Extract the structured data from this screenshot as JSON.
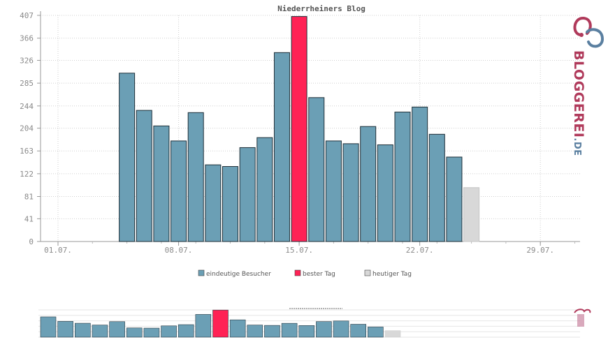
{
  "chart_data": {
    "type": "bar",
    "title": "Niederrheiners Blog",
    "y_ticks": [
      "0",
      "41",
      "81",
      "122",
      "163",
      "204",
      "244",
      "285",
      "326",
      "366",
      "407"
    ],
    "ylim": [
      0,
      407
    ],
    "x_tick_labels": [
      {
        "day": 1,
        "label": "01.07."
      },
      {
        "day": 8,
        "label": "08.07."
      },
      {
        "day": 15,
        "label": "15.07."
      },
      {
        "day": 22,
        "label": "22.07."
      },
      {
        "day": 29,
        "label": "29.07."
      }
    ],
    "grid": true,
    "legend_position": "bottom-center",
    "series": [
      {
        "name": "eindeutige Besucher",
        "color": "#6b9fb5"
      },
      {
        "name": "bester Tag",
        "color": "#ff2255"
      },
      {
        "name": "heutiger Tag",
        "color": "#d8d8d8"
      }
    ],
    "bars": [
      {
        "day": 5,
        "value": 303,
        "kind": 0
      },
      {
        "day": 6,
        "value": 236,
        "kind": 0
      },
      {
        "day": 7,
        "value": 208,
        "kind": 0
      },
      {
        "day": 8,
        "value": 181,
        "kind": 0
      },
      {
        "day": 9,
        "value": 232,
        "kind": 0
      },
      {
        "day": 10,
        "value": 138,
        "kind": 0
      },
      {
        "day": 11,
        "value": 135,
        "kind": 0
      },
      {
        "day": 12,
        "value": 169,
        "kind": 0
      },
      {
        "day": 13,
        "value": 187,
        "kind": 0
      },
      {
        "day": 14,
        "value": 340,
        "kind": 0
      },
      {
        "day": 15,
        "value": 405,
        "kind": 1
      },
      {
        "day": 16,
        "value": 259,
        "kind": 0
      },
      {
        "day": 17,
        "value": 181,
        "kind": 0
      },
      {
        "day": 18,
        "value": 176,
        "kind": 0
      },
      {
        "day": 19,
        "value": 207,
        "kind": 0
      },
      {
        "day": 20,
        "value": 174,
        "kind": 0
      },
      {
        "day": 21,
        "value": 233,
        "kind": 0
      },
      {
        "day": 22,
        "value": 242,
        "kind": 0
      },
      {
        "day": 23,
        "value": 193,
        "kind": 0
      },
      {
        "day": 24,
        "value": 152,
        "kind": 0
      },
      {
        "day": 25,
        "value": 97,
        "kind": 2
      }
    ]
  },
  "logo": {
    "text_main": "BLOGGEREI",
    "text_suffix": ".DE",
    "color_main": "#b03a5b",
    "color_suffix": "#5a7fa0"
  }
}
